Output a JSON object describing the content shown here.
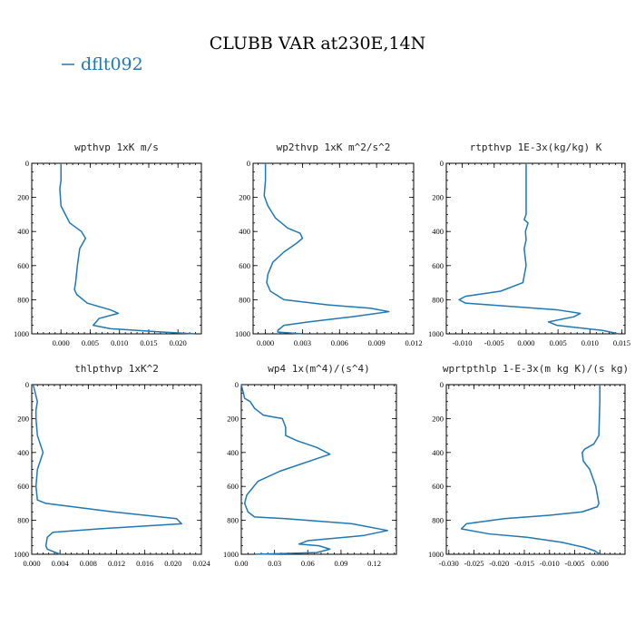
{
  "figure": {
    "title": "CLUBB VAR at230E,14N",
    "legend": {
      "label": "dflt092",
      "color": "#1f77b4"
    }
  },
  "chart_data": [
    {
      "type": "line",
      "title": "wpthvp  1xK m/s",
      "xlim": [
        -0.005,
        0.024
      ],
      "ylim": [
        1000,
        0
      ],
      "xticks": [
        0.0,
        0.005,
        0.01,
        0.015,
        0.02
      ],
      "xticklabels": [
        "0.000",
        "0.005",
        "0.010",
        "0.015",
        "0.020"
      ],
      "yticks": [
        0,
        200,
        400,
        600,
        800,
        1000
      ],
      "series": [
        {
          "color": "#1f77b4",
          "x": [
            0.0,
            0.0,
            -0.0002,
            0.0,
            0.0015,
            0.0035,
            0.0042,
            0.0032,
            0.0028,
            0.0025,
            0.0023,
            0.0027,
            0.0045,
            0.0085,
            0.0098,
            0.0065,
            0.0055,
            0.0085,
            0.0175,
            0.023
          ],
          "y": [
            0,
            100,
            150,
            250,
            350,
            400,
            440,
            500,
            600,
            700,
            740,
            770,
            820,
            860,
            880,
            910,
            950,
            970,
            990,
            1000
          ]
        }
      ]
    },
    {
      "type": "line",
      "title": "wp2thvp  1xK m^2/s^2",
      "xlim": [
        -0.001,
        0.012
      ],
      "ylim": [
        1000,
        0
      ],
      "xticks": [
        0.0,
        0.003,
        0.006,
        0.009,
        0.012
      ],
      "xticklabels": [
        "0.000",
        "0.003",
        "0.006",
        "0.009",
        "0.012"
      ],
      "yticks": [
        0,
        200,
        400,
        600,
        800,
        1000
      ],
      "series": [
        {
          "color": "#1f77b4",
          "x": [
            0.0,
            0.0,
            -0.0001,
            0.0002,
            0.0008,
            0.0018,
            0.0028,
            0.003,
            0.0025,
            0.0015,
            0.0006,
            0.0002,
            0.0001,
            0.0004,
            0.0015,
            0.005,
            0.0085,
            0.01,
            0.007,
            0.0035,
            0.0015,
            0.001,
            0.001,
            0.003
          ],
          "y": [
            0,
            100,
            190,
            250,
            320,
            380,
            410,
            440,
            470,
            520,
            580,
            650,
            700,
            750,
            800,
            830,
            850,
            870,
            900,
            930,
            950,
            980,
            990,
            1000
          ]
        }
      ]
    },
    {
      "type": "line",
      "title": "rtpthvp  1E-3x(kg/kg) K",
      "xlim": [
        -0.0125,
        0.0155
      ],
      "ylim": [
        1000,
        0
      ],
      "xticks": [
        -0.01,
        -0.005,
        0.0,
        0.005,
        0.01,
        0.015
      ],
      "xticklabels": [
        "-0.010",
        "-0.005",
        "0.000",
        "0.005",
        "0.010",
        "0.015"
      ],
      "yticks": [
        0,
        200,
        400,
        600,
        800,
        1000
      ],
      "series": [
        {
          "color": "#1f77b4",
          "x": [
            0.0,
            0.0,
            -0.0003,
            0.0003,
            -0.0001,
            0.0,
            -0.0003,
            0.0,
            -0.0005,
            -0.004,
            -0.0095,
            -0.0105,
            -0.0095,
            0.005,
            0.0085,
            0.0075,
            0.0035,
            0.0048,
            0.012,
            0.0145
          ],
          "y": [
            0,
            300,
            330,
            350,
            400,
            450,
            500,
            600,
            700,
            750,
            780,
            800,
            820,
            860,
            880,
            900,
            930,
            950,
            980,
            1000
          ]
        }
      ]
    },
    {
      "type": "line",
      "title": "thlpthvp  1xK^2",
      "xlim": [
        0.0,
        0.024
      ],
      "ylim": [
        1000,
        0
      ],
      "xticks": [
        0.0,
        0.004,
        0.008,
        0.012,
        0.016,
        0.02,
        0.024
      ],
      "xticklabels": [
        "0.000",
        "0.004",
        "0.008",
        "0.012",
        "0.016",
        "0.020",
        "0.024"
      ],
      "yticks": [
        0,
        200,
        400,
        600,
        800,
        1000
      ],
      "series": [
        {
          "color": "#1f77b4",
          "x": [
            0.0002,
            0.0008,
            0.0006,
            0.0006,
            0.0008,
            0.0012,
            0.0016,
            0.0012,
            0.0008,
            0.0006,
            0.0008,
            0.002,
            0.0115,
            0.0205,
            0.0212,
            0.0095,
            0.003,
            0.0022,
            0.002,
            0.0022,
            0.004
          ],
          "y": [
            0,
            100,
            150,
            200,
            300,
            350,
            400,
            450,
            500,
            600,
            680,
            700,
            750,
            790,
            820,
            850,
            870,
            900,
            950,
            970,
            1000
          ]
        }
      ]
    },
    {
      "type": "line",
      "title": "wp4  1x(m^4)/(s^4)",
      "xlim": [
        0.0,
        0.14
      ],
      "ylim": [
        1000,
        0
      ],
      "xticks": [
        0.0,
        0.03,
        0.06,
        0.09,
        0.12
      ],
      "xticklabels": [
        "0.00",
        "0.03",
        "0.06",
        "0.09",
        "0.12"
      ],
      "yticks": [
        0,
        200,
        400,
        600,
        800,
        1000
      ],
      "series": [
        {
          "color": "#1f77b4",
          "x": [
            0.0,
            0.003,
            0.008,
            0.012,
            0.02,
            0.028,
            0.037,
            0.04,
            0.04,
            0.05,
            0.068,
            0.08,
            0.062,
            0.035,
            0.015,
            0.005,
            0.003,
            0.006,
            0.012,
            0.04,
            0.1,
            0.132,
            0.11,
            0.06,
            0.052,
            0.07,
            0.08,
            0.068,
            0.04,
            0.012
          ],
          "y": [
            0,
            80,
            100,
            140,
            180,
            190,
            200,
            250,
            300,
            330,
            370,
            410,
            450,
            510,
            570,
            650,
            700,
            750,
            780,
            790,
            820,
            860,
            890,
            920,
            940,
            950,
            970,
            990,
            995,
            1000
          ]
        }
      ]
    },
    {
      "type": "line",
      "title": "wprtpthlp  1-E-3x(m kg K)/(s kg)",
      "xlim": [
        -0.0305,
        0.005
      ],
      "ylim": [
        1000,
        0
      ],
      "xticks": [
        -0.03,
        -0.025,
        -0.02,
        -0.015,
        -0.01,
        -0.005,
        0.0
      ],
      "xticklabels": [
        "-0.030",
        "-0.025",
        "-0.020",
        "-0.015",
        "-0.010",
        "-0.005",
        "0.000"
      ],
      "yticks": [
        0,
        200,
        400,
        600,
        800,
        1000
      ],
      "series": [
        {
          "color": "#1f77b4",
          "x": [
            0.0,
            0.0,
            -0.0002,
            -0.0012,
            -0.003,
            -0.0035,
            -0.0033,
            -0.002,
            -0.0008,
            -0.0002,
            -0.0005,
            -0.0035,
            -0.01,
            -0.019,
            -0.0265,
            -0.0275,
            -0.022,
            -0.0145,
            -0.0075,
            -0.003,
            -0.001,
            0.0
          ],
          "y": [
            0,
            100,
            300,
            350,
            380,
            400,
            450,
            500,
            600,
            700,
            720,
            750,
            770,
            790,
            820,
            850,
            880,
            900,
            930,
            960,
            980,
            1000
          ]
        }
      ]
    }
  ]
}
